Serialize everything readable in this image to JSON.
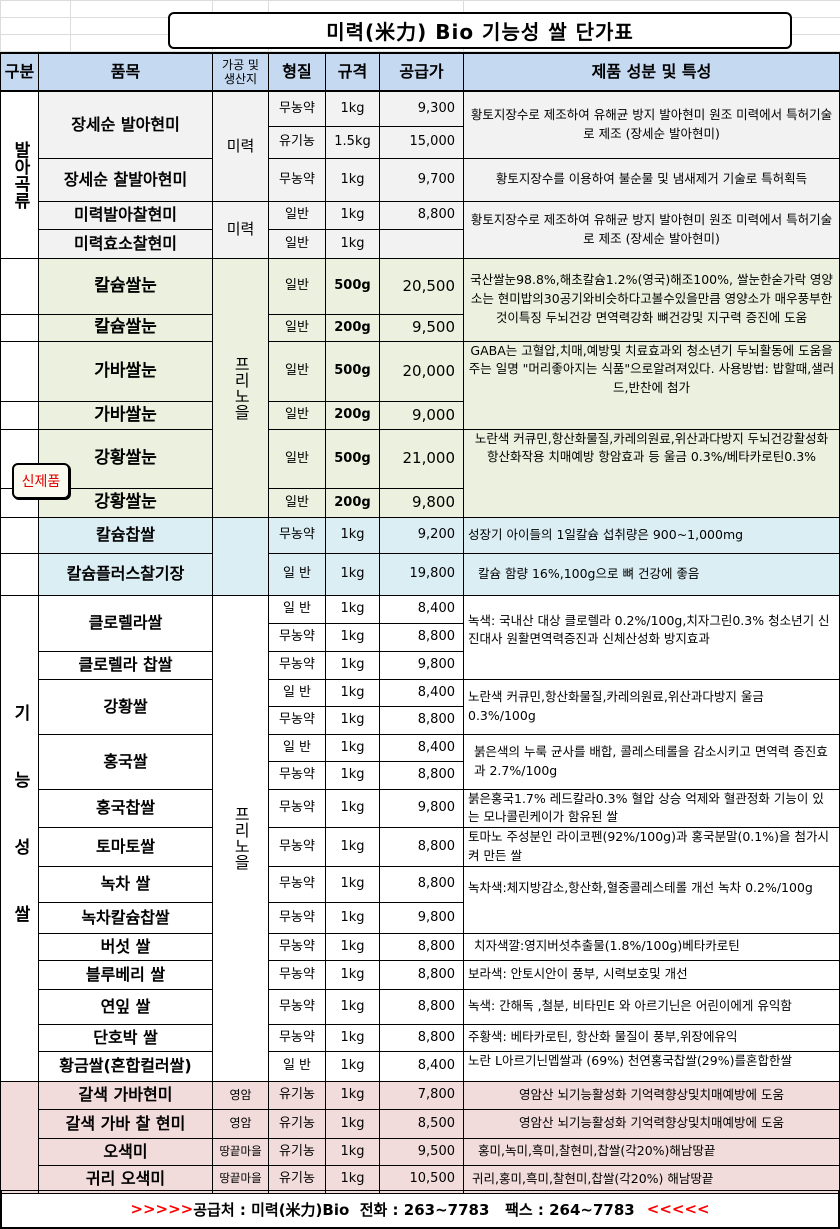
{
  "title": "미력(米力) Bio 기능성 쌀 단가표",
  "header": {
    "category": "구분",
    "item": "품목",
    "origin": "가공 및 생산지",
    "type": "형질",
    "size": "규격",
    "price": "공급가",
    "desc": "제품 성분 및 특성"
  },
  "categories": {
    "sprout": "발아곡류",
    "functional": "기능성쌀"
  },
  "badge": "신제품",
  "origins": {
    "miryeok": "미력",
    "frino": "프리노을",
    "yeongam": "영암",
    "ttangkkeut": "땅끝마을"
  },
  "rows": [
    {
      "item": "장세순 발아현미",
      "type": "무농약",
      "size": "1kg",
      "price": "9,300",
      "desc": "황토지장수로 제조하여 유해균 방지  발아현미  원조 미력에서 특허기술로 제조 (장세순 발아현미)"
    },
    {
      "type": "유기농",
      "size": "1.5kg",
      "price": "15,000"
    },
    {
      "item": "장세순 찰발아현미",
      "type": "무농약",
      "size": "1kg",
      "price": "9,700",
      "desc": "황토지장수를 이용하여 불순물 및 냄새제거 기술로   특허획득"
    },
    {
      "item": "미력발아찰현미",
      "type": "일반",
      "size": "1kg",
      "price": "8,800",
      "desc": "황토지장수로 제조하여 유해균 방지  발아현미  원조 미력에서 특허기술로 제조 (장세순 발아현미)"
    },
    {
      "item": "미력효소찰현미",
      "type": "일반",
      "size": "1kg",
      "price": ""
    },
    {
      "item": "칼슘쌀눈",
      "type": "일반",
      "size": "500g",
      "price": "20,500",
      "desc": "국산쌀눈98.8%,해초칼슘1.2%(영국)해조100%, 쌀눈한숟가락 영양소는 현미밥의30공기와비슷하다고볼수있을만큼 영양소가 매우풍부한것이특징 두뇌건강 면역력강화 뼈건강및 지구력 증진에 도움"
    },
    {
      "item": "칼슘쌀눈",
      "type": "일반",
      "size": "200g",
      "price": "9,500"
    },
    {
      "item": "가바쌀눈",
      "type": "일반",
      "size": "500g",
      "price": "20,000",
      "desc": "GABA는 고혈압,치매,예방및 치료효과외 청소년기 두뇌활동에 도움을 주는 일명 \"머리좋아지는 식품\"으로알려져있다. 사용방법: 밥할때,샐러드,반찬에 첨가"
    },
    {
      "item": "가바쌀눈",
      "type": "일반",
      "size": "200g",
      "price": "9,000"
    },
    {
      "item": "강황쌀눈",
      "type": "일반",
      "size": "500g",
      "price": "21,000",
      "desc": "노란색 커큐민,항산화물질,카레의원료,위산과다방지 두뇌건강활성화 항산화작용 치매예방 항암효과 등 울금 0.3%/베타카로틴0.3%"
    },
    {
      "item": "강황쌀눈",
      "type": "일반",
      "size": "200g",
      "price": "9,800"
    },
    {
      "item": "칼슘찹쌀",
      "type": "무농약",
      "size": "1kg",
      "price": "9,200",
      "desc": "성장기 아이들의 1일칼슘 섭취량은 900~1,000mg"
    },
    {
      "item": "칼슘플러스찰기장",
      "type": "일 반",
      "size": "1kg",
      "price": "19,800",
      "desc": "칼슘 함량 16%,100g으로 뼈 건강에 좋음"
    },
    {
      "item": "클로렐라쌀",
      "type": "일 반",
      "size": "1kg",
      "price": "8,400",
      "desc": "녹색: 국내산 대상 클로렐라 0.2%/100g,치자그린0.3%  청소년기 신진대사 원활면역력증진과 신체산성화 방지효과"
    },
    {
      "type": "무농약",
      "size": "1kg",
      "price": "8,800"
    },
    {
      "item": "클로렐라 찹쌀",
      "type": "무농약",
      "size": "1kg",
      "price": "9,800"
    },
    {
      "item": "강황쌀",
      "type": "일 반",
      "size": "1kg",
      "price": "8,400",
      "desc": "노란색 커큐민,항산화물질,카레의원료,위산과다방지   울금 0.3%/100g"
    },
    {
      "type": "무농약",
      "size": "1kg",
      "price": "8,800"
    },
    {
      "item": "홍국쌀",
      "type": "일 반",
      "size": "1kg",
      "price": "8,400",
      "desc": "붉은색의 누룩 균사를 배합, 콜레스테롤을 감소시키고 면역력 증진효과 2.7%/100g"
    },
    {
      "type": "무농약",
      "size": "1kg",
      "price": "8,800"
    },
    {
      "item": "홍국찹쌀",
      "type": "무농약",
      "size": "1kg",
      "price": "9,800",
      "desc": "붉은홍국1.7%  레드칼라0.3% 혈압 상승 억제와 혈관정화 기능이 있는 모나콜린케이가 함유된 쌀"
    },
    {
      "item": "토마토쌀",
      "type": "무농약",
      "size": "1kg",
      "price": "8,800",
      "desc": "토마노 주성분인 라이코펜(92%/100g)과 홍국분말(0.1%)을 첨가시켜 만든 쌀"
    },
    {
      "item": "녹차 쌀",
      "type": "무농약",
      "size": "1kg",
      "price": "8,800",
      "desc": "녹차색:체지방감소,항산화,혈중콜레스테롤 개선 녹차 0.2%/100g"
    },
    {
      "item": "녹차칼슘찹쌀",
      "type": "무농약",
      "size": "1kg",
      "price": "9,800"
    },
    {
      "item": "버섯 쌀",
      "type": "무농약",
      "size": "1kg",
      "price": "8,800",
      "desc": "치자색깔:영지버섯추출물(1.8%/100g)베타카로틴"
    },
    {
      "item": "블루베리 쌀",
      "type": "무농약",
      "size": "1kg",
      "price": "8,800",
      "desc": "보라색: 안토시안이 풍부, 시력보호및 개선"
    },
    {
      "item": "연잎 쌀",
      "type": "무농약",
      "size": "1kg",
      "price": "8,800",
      "desc": "녹색:  간해독 ,철분, 비타민E 와 아르기닌은 어린이에게 유익함"
    },
    {
      "item": "단호박 쌀",
      "type": "무농약",
      "size": "1kg",
      "price": "8,800",
      "desc": "주황색: 베타카로틴, 항산화 물질이 풍부,위장에유익"
    },
    {
      "item": "황금쌀(혼합컬러쌀)",
      "type": "일 반",
      "size": "1kg",
      "price": "8,400",
      "desc": "노란 L아르기닌멥쌀과 (69%) 천연홍국찹쌀(29%)를혼합한쌀"
    },
    {
      "item": "갈색 가바현미",
      "type": "유기농",
      "size": "1kg",
      "price": "7,800",
      "desc": "영암산 뇌기능활성화 기억력향상및치매예방에 도움"
    },
    {
      "item": "갈색 가바 찰 현미",
      "type": "유기농",
      "size": "1kg",
      "price": "8,500",
      "desc": "영암산 뇌기능활성화 기억력향상및치매예방에 도움"
    },
    {
      "item": "오색미",
      "type": "유기농",
      "size": "1kg",
      "price": "9,500",
      "desc": "홍미,녹미,흑미,찰현미,찹쌀(각20%)해남땅끝"
    },
    {
      "item": "귀리 오색미",
      "type": "유기농",
      "size": "1kg",
      "price": "10,500",
      "desc": "귀리,홍미,흑미,찰현미,찹쌀(각20%) 해남땅끝"
    }
  ],
  "footer": {
    "prefix": ">>>>>",
    "text": "공급처 : 미력(米力)Bio  전화 : 263~7783   팩스 : 264~7783",
    "suffix": "<<<<<"
  },
  "colors": {
    "header": "#c5d9f1",
    "section_sprout": "#f2f2f2",
    "section_new": "#ebf1de",
    "section_calcium": "#dbeef4",
    "section_organic": "#f2dcdb",
    "accent_red": "#ff0000"
  }
}
